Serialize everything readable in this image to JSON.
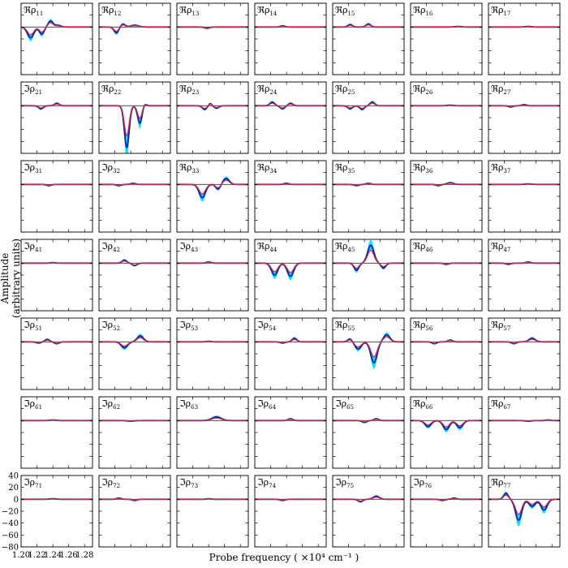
{
  "figure": {
    "ylabel": "Amplitude (arbitrary units)",
    "xlabel": "Probe frequency ( ×10⁴ cm⁻¹ )",
    "colors": {
      "band": "#00e5ff",
      "mean": "#0d1bb5",
      "model": "#d6283a",
      "zero": "#333333"
    }
  },
  "chart_data": {
    "type": "line",
    "grid": "7x7 small multiples",
    "xlim": [
      1.2,
      1.29
    ],
    "ylim": [
      -80,
      40
    ],
    "x_ticks": [
      1.2,
      1.22,
      1.24,
      1.26,
      1.28
    ],
    "x_ticklabels": [
      "1.20",
      "1.22",
      "1.24",
      "1.26",
      "1.28"
    ],
    "y_ticks": [
      40,
      20,
      0,
      -20,
      -40,
      -60,
      -80
    ],
    "y_ticklabels": [
      "40",
      "20",
      "0",
      "−20",
      "−40",
      "−60",
      "−80"
    ],
    "series_note": "bottom-left panel axes apply to all panels",
    "panels": [
      {
        "row": 1,
        "col": 1,
        "part": "ℜ",
        "label": "ℜρ",
        "sub": "11",
        "peaks": [
          [
            1.212,
            -18,
            0.004
          ],
          [
            1.226,
            -12,
            0.003
          ],
          [
            1.237,
            10,
            0.003
          ],
          [
            1.246,
            3,
            0.004
          ]
        ]
      },
      {
        "row": 1,
        "col": 2,
        "part": "ℜ",
        "label": "ℜρ",
        "sub": "12",
        "peaks": [
          [
            1.222,
            -10,
            0.003
          ],
          [
            1.23,
            5,
            0.003
          ],
          [
            1.245,
            3,
            0.005
          ]
        ]
      },
      {
        "row": 1,
        "col": 3,
        "part": "ℜ",
        "label": "ℜρ",
        "sub": "13",
        "peaks": [
          [
            1.238,
            -2,
            0.003
          ]
        ]
      },
      {
        "row": 1,
        "col": 4,
        "part": "ℜ",
        "label": "ℜρ",
        "sub": "14",
        "peaks": [
          [
            1.235,
            2,
            0.003
          ]
        ]
      },
      {
        "row": 1,
        "col": 5,
        "part": "ℜ",
        "label": "ℜρ",
        "sub": "15",
        "peaks": [
          [
            1.222,
            4,
            0.003
          ],
          [
            1.245,
            5,
            0.003
          ]
        ]
      },
      {
        "row": 1,
        "col": 6,
        "part": "ℜ",
        "label": "ℜρ",
        "sub": "16",
        "peaks": [
          [
            1.26,
            1,
            0.004
          ]
        ]
      },
      {
        "row": 1,
        "col": 7,
        "part": "ℜ",
        "label": "ℜρ",
        "sub": "17",
        "peaks": [
          [
            1.25,
            1,
            0.004
          ]
        ]
      },
      {
        "row": 2,
        "col": 1,
        "part": "ℑ",
        "label": "ℑρ",
        "sub": "21",
        "peaks": [
          [
            1.225,
            -5,
            0.003
          ],
          [
            1.245,
            4,
            0.003
          ]
        ]
      },
      {
        "row": 2,
        "col": 2,
        "part": "ℜ",
        "label": "ℜρ",
        "sub": "22",
        "peaks": [
          [
            1.235,
            -70,
            0.003
          ],
          [
            1.252,
            -35,
            0.003
          ],
          [
            1.255,
            10,
            0.003
          ]
        ]
      },
      {
        "row": 2,
        "col": 3,
        "part": "ℜ",
        "label": "ℜρ",
        "sub": "23",
        "peaks": [
          [
            1.235,
            -6,
            0.003
          ],
          [
            1.242,
            4,
            0.002
          ],
          [
            1.25,
            -4,
            0.003
          ]
        ]
      },
      {
        "row": 2,
        "col": 4,
        "part": "ℜ",
        "label": "ℜρ",
        "sub": "24",
        "peaks": [
          [
            1.222,
            6,
            0.003
          ],
          [
            1.235,
            -5,
            0.003
          ],
          [
            1.245,
            4,
            0.003
          ]
        ]
      },
      {
        "row": 2,
        "col": 5,
        "part": "ℜ",
        "label": "ℜρ",
        "sub": "25",
        "peaks": [
          [
            1.222,
            -5,
            0.003
          ],
          [
            1.237,
            -6,
            0.003
          ],
          [
            1.25,
            6,
            0.003
          ]
        ]
      },
      {
        "row": 2,
        "col": 6,
        "part": "ℜ",
        "label": "ℜρ",
        "sub": "26",
        "peaks": [
          [
            1.25,
            1,
            0.004
          ]
        ]
      },
      {
        "row": 2,
        "col": 7,
        "part": "ℜ",
        "label": "ℜρ",
        "sub": "27",
        "peaks": [
          [
            1.228,
            -2,
            0.003
          ],
          [
            1.245,
            2,
            0.003
          ]
        ]
      },
      {
        "row": 3,
        "col": 1,
        "part": "ℑ",
        "label": "ℑρ",
        "sub": "31",
        "peaks": [
          [
            1.235,
            -2,
            0.003
          ]
        ]
      },
      {
        "row": 3,
        "col": 2,
        "part": "ℑ",
        "label": "ℑρ",
        "sub": "32",
        "peaks": [
          [
            1.225,
            -2,
            0.003
          ],
          [
            1.243,
            2,
            0.003
          ]
        ]
      },
      {
        "row": 3,
        "col": 3,
        "part": "ℜ",
        "label": "ℜρ",
        "sub": "33",
        "peaks": [
          [
            1.232,
            -22,
            0.004
          ],
          [
            1.252,
            -8,
            0.003
          ],
          [
            1.262,
            10,
            0.004
          ]
        ]
      },
      {
        "row": 3,
        "col": 4,
        "part": "ℜ",
        "label": "ℜρ",
        "sub": "34",
        "peaks": [
          [
            1.24,
            2,
            0.003
          ]
        ]
      },
      {
        "row": 3,
        "col": 5,
        "part": "ℜ",
        "label": "ℜρ",
        "sub": "35",
        "peaks": [
          [
            1.23,
            -2,
            0.003
          ],
          [
            1.245,
            2,
            0.003
          ]
        ]
      },
      {
        "row": 3,
        "col": 6,
        "part": "ℜ",
        "label": "ℜρ",
        "sub": "36",
        "peaks": [
          [
            1.235,
            -2,
            0.003
          ],
          [
            1.25,
            3,
            0.004
          ]
        ]
      },
      {
        "row": 3,
        "col": 7,
        "part": "ℜ",
        "label": "ℜρ",
        "sub": "37",
        "peaks": [
          [
            1.25,
            1,
            0.004
          ]
        ]
      },
      {
        "row": 4,
        "col": 1,
        "part": "ℑ",
        "label": "ℑρ",
        "sub": "41",
        "peaks": [
          [
            1.24,
            1,
            0.003
          ]
        ]
      },
      {
        "row": 4,
        "col": 2,
        "part": "ℑ",
        "label": "ℑρ",
        "sub": "42",
        "peaks": [
          [
            1.232,
            5,
            0.003
          ],
          [
            1.245,
            -4,
            0.003
          ]
        ]
      },
      {
        "row": 4,
        "col": 3,
        "part": "ℑ",
        "label": "ℑρ",
        "sub": "43",
        "peaks": [
          [
            1.24,
            2,
            0.003
          ]
        ]
      },
      {
        "row": 4,
        "col": 4,
        "part": "ℜ",
        "label": "ℜρ",
        "sub": "44",
        "peaks": [
          [
            1.225,
            -20,
            0.004
          ],
          [
            1.245,
            -22,
            0.004
          ]
        ]
      },
      {
        "row": 4,
        "col": 5,
        "part": "ℜ",
        "label": "ℜρ",
        "sub": "45",
        "peaks": [
          [
            1.23,
            -12,
            0.003
          ],
          [
            1.248,
            30,
            0.004
          ],
          [
            1.264,
            -8,
            0.003
          ]
        ]
      },
      {
        "row": 4,
        "col": 6,
        "part": "ℜ",
        "label": "ℜρ",
        "sub": "46",
        "peaks": [
          [
            1.245,
            -2,
            0.003
          ]
        ]
      },
      {
        "row": 4,
        "col": 7,
        "part": "ℜ",
        "label": "ℜρ",
        "sub": "47",
        "peaks": [
          [
            1.225,
            -2,
            0.003
          ],
          [
            1.25,
            2,
            0.003
          ]
        ]
      },
      {
        "row": 5,
        "col": 1,
        "part": "ℑ",
        "label": "ℑρ",
        "sub": "51",
        "peaks": [
          [
            1.222,
            -2,
            0.003
          ],
          [
            1.233,
            4,
            0.003
          ],
          [
            1.245,
            -3,
            0.003
          ]
        ]
      },
      {
        "row": 5,
        "col": 2,
        "part": "ℑ",
        "label": "ℑρ",
        "sub": "52",
        "peaks": [
          [
            1.232,
            -10,
            0.004
          ],
          [
            1.252,
            10,
            0.004
          ]
        ]
      },
      {
        "row": 5,
        "col": 3,
        "part": "ℑ",
        "label": "ℑρ",
        "sub": "53",
        "peaks": [
          [
            1.24,
            1,
            0.003
          ]
        ]
      },
      {
        "row": 5,
        "col": 4,
        "part": "ℑ",
        "label": "ℑρ",
        "sub": "54",
        "peaks": [
          [
            1.235,
            -2,
            0.003
          ],
          [
            1.25,
            6,
            0.003
          ]
        ]
      },
      {
        "row": 5,
        "col": 5,
        "part": "ℜ",
        "label": "ℜρ",
        "sub": "55",
        "peaks": [
          [
            1.222,
            5,
            0.003
          ],
          [
            1.232,
            -12,
            0.004
          ],
          [
            1.252,
            -35,
            0.004
          ],
          [
            1.268,
            12,
            0.004
          ]
        ]
      },
      {
        "row": 5,
        "col": 6,
        "part": "ℜ",
        "label": "ℜρ",
        "sub": "56",
        "peaks": [
          [
            1.23,
            -3,
            0.003
          ],
          [
            1.25,
            3,
            0.003
          ]
        ]
      },
      {
        "row": 5,
        "col": 7,
        "part": "ℜ",
        "label": "ℜρ",
        "sub": "57",
        "peaks": [
          [
            1.232,
            -3,
            0.003
          ],
          [
            1.255,
            6,
            0.004
          ]
        ]
      },
      {
        "row": 6,
        "col": 1,
        "part": "ℑ",
        "label": "ℑρ",
        "sub": "61",
        "peaks": [
          [
            1.24,
            1,
            0.004
          ]
        ]
      },
      {
        "row": 6,
        "col": 2,
        "part": "ℑ",
        "label": "ℑρ",
        "sub": "62",
        "peaks": [
          [
            1.24,
            -1,
            0.004
          ]
        ]
      },
      {
        "row": 6,
        "col": 3,
        "part": "ℑ",
        "label": "ℑρ",
        "sub": "63",
        "peaks": [
          [
            1.25,
            6,
            0.006
          ]
        ]
      },
      {
        "row": 6,
        "col": 4,
        "part": "ℑ",
        "label": "ℑρ",
        "sub": "64",
        "peaks": [
          [
            1.245,
            3,
            0.003
          ]
        ]
      },
      {
        "row": 6,
        "col": 5,
        "part": "ℑ",
        "label": "ℑρ",
        "sub": "65",
        "peaks": [
          [
            1.24,
            -3,
            0.003
          ],
          [
            1.255,
            3,
            0.003
          ]
        ]
      },
      {
        "row": 6,
        "col": 6,
        "part": "ℜ",
        "label": "ℜρ",
        "sub": "66",
        "peaks": [
          [
            1.222,
            -10,
            0.004
          ],
          [
            1.245,
            -15,
            0.004
          ],
          [
            1.262,
            -12,
            0.004
          ]
        ]
      },
      {
        "row": 6,
        "col": 7,
        "part": "ℜ",
        "label": "ℜρ",
        "sub": "67",
        "peaks": [
          [
            1.25,
            -1,
            0.004
          ],
          [
            1.275,
            1,
            0.003
          ]
        ]
      },
      {
        "row": 7,
        "col": 1,
        "part": "ℑ",
        "label": "ℑρ",
        "sub": "71",
        "peaks": [
          [
            1.24,
            1,
            0.004
          ]
        ]
      },
      {
        "row": 7,
        "col": 2,
        "part": "ℑ",
        "label": "ℑρ",
        "sub": "72",
        "peaks": [
          [
            1.225,
            2,
            0.003
          ],
          [
            1.245,
            -2,
            0.003
          ]
        ]
      },
      {
        "row": 7,
        "col": 3,
        "part": "ℑ",
        "label": "ℑρ",
        "sub": "73",
        "peaks": [
          [
            1.24,
            1,
            0.003
          ]
        ]
      },
      {
        "row": 7,
        "col": 4,
        "part": "ℑ",
        "label": "ℑρ",
        "sub": "74",
        "peaks": [
          [
            1.235,
            -2,
            0.003
          ]
        ]
      },
      {
        "row": 7,
        "col": 5,
        "part": "ℑ",
        "label": "ℑρ",
        "sub": "75",
        "peaks": [
          [
            1.235,
            -4,
            0.003
          ],
          [
            1.255,
            5,
            0.004
          ]
        ]
      },
      {
        "row": 7,
        "col": 6,
        "part": "ℑ",
        "label": "ℑρ",
        "sub": "76",
        "peaks": [
          [
            1.24,
            -2,
            0.003
          ],
          [
            1.255,
            2,
            0.003
          ]
        ]
      },
      {
        "row": 7,
        "col": 7,
        "part": "ℜ",
        "label": "ℜρ",
        "sub": "77",
        "peaks": [
          [
            1.222,
            10,
            0.003
          ],
          [
            1.238,
            -35,
            0.004
          ],
          [
            1.255,
            -12,
            0.004
          ],
          [
            1.27,
            -18,
            0.004
          ]
        ]
      }
    ]
  }
}
